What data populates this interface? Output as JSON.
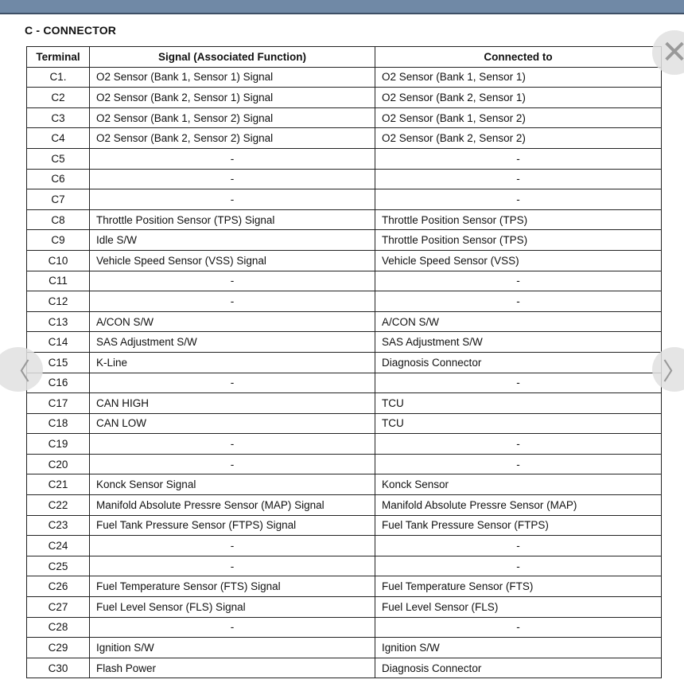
{
  "title": "C - CONNECTOR",
  "headers": [
    "Terminal",
    "Signal (Associated Function)",
    "Connected to"
  ],
  "rows": [
    [
      "C1.",
      "O2 Sensor (Bank 1, Sensor 1) Signal",
      "O2 Sensor (Bank 1, Sensor 1)"
    ],
    [
      "C2",
      "O2 Sensor (Bank 2, Sensor 1) Signal",
      "O2 Sensor (Bank 2, Sensor 1)"
    ],
    [
      "C3",
      "O2 Sensor (Bank 1, Sensor 2) Signal",
      "O2 Sensor (Bank 1, Sensor 2)"
    ],
    [
      "C4",
      "O2 Sensor (Bank 2, Sensor 2) Signal",
      "O2 Sensor (Bank 2, Sensor 2)"
    ],
    [
      "C5",
      "-",
      "-"
    ],
    [
      "C6",
      "-",
      "-"
    ],
    [
      "C7",
      "-",
      "-"
    ],
    [
      "C8",
      "Throttle Position Sensor (TPS) Signal",
      "Throttle Position Sensor (TPS)"
    ],
    [
      "C9",
      "Idle S/W",
      "Throttle Position Sensor (TPS)"
    ],
    [
      "C10",
      "Vehicle Speed Sensor (VSS) Signal",
      "Vehicle Speed Sensor (VSS)"
    ],
    [
      "C11",
      "-",
      "-"
    ],
    [
      "C12",
      "-",
      "-"
    ],
    [
      "C13",
      "A/CON S/W",
      "A/CON S/W"
    ],
    [
      "C14",
      "SAS Adjustment S/W",
      "SAS Adjustment S/W"
    ],
    [
      "C15",
      "K-Line",
      "Diagnosis Connector"
    ],
    [
      "C16",
      "-",
      "-"
    ],
    [
      "C17",
      "CAN HIGH",
      "TCU"
    ],
    [
      "C18",
      "CAN LOW",
      "TCU"
    ],
    [
      "C19",
      "-",
      "-"
    ],
    [
      "C20",
      "-",
      "-"
    ],
    [
      "C21",
      "Konck Sensor Signal",
      "Konck Sensor"
    ],
    [
      "C22",
      "Manifold Absolute Pressre Sensor (MAP) Signal",
      "Manifold Absolute Pressre Sensor (MAP)"
    ],
    [
      "C23",
      "Fuel Tank Pressure Sensor (FTPS) Signal",
      "Fuel Tank Pressure Sensor (FTPS)"
    ],
    [
      "C24",
      "-",
      "-"
    ],
    [
      "C25",
      "-",
      "-"
    ],
    [
      "C26",
      "Fuel Temperature Sensor (FTS) Signal",
      "Fuel Temperature Sensor (FTS)"
    ],
    [
      "C27",
      "Fuel Level Sensor (FLS) Signal",
      "Fuel Level Sensor (FLS)"
    ],
    [
      "C28",
      "-",
      "-"
    ],
    [
      "C29",
      "Ignition S/W",
      "Ignition S/W"
    ],
    [
      "C30",
      "Flash Power",
      "Diagnosis Connector"
    ]
  ],
  "overlay": {
    "close": "close-icon",
    "prev": "chevron-left-icon",
    "next": "chevron-right-icon"
  },
  "colors": {
    "topbar": "#7089a6"
  }
}
